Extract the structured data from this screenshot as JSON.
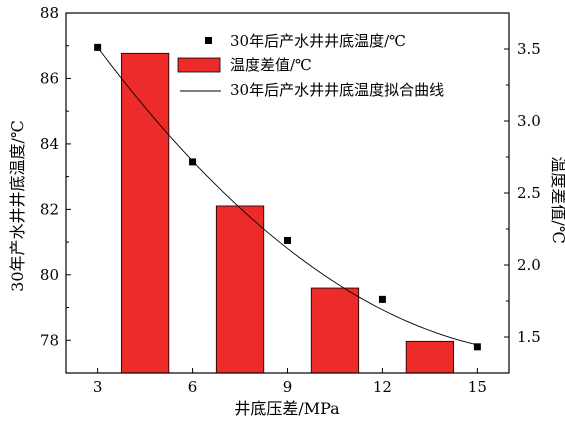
{
  "chart_data": {
    "type": "bar",
    "x": [
      3,
      6,
      9,
      12,
      15
    ],
    "xlim": [
      2,
      16
    ],
    "xticks": [
      "3",
      "6",
      "9",
      "12",
      "15"
    ],
    "xlabel": "井底压差/MPa",
    "ylabel_left": "30年产水井井底温度/℃",
    "ylim_left": [
      77,
      88
    ],
    "yticks_left": [
      "78",
      "80",
      "82",
      "84",
      "86",
      "88"
    ],
    "ylabel_right": "温度差值/℃",
    "ylim_right": [
      1.25,
      3.75
    ],
    "yticks_right": [
      "1.5",
      "2.0",
      "2.5",
      "3.0",
      "3.5"
    ],
    "grid": false,
    "legend_position": "top-right",
    "series": [
      {
        "name": "30年后产水井井底温度/℃",
        "kind": "scatter",
        "axis": "left",
        "marker": "square",
        "color": "#000000",
        "x": [
          3,
          6,
          9,
          12,
          15
        ],
        "values": [
          86.95,
          83.45,
          81.05,
          79.25,
          77.8
        ]
      },
      {
        "name": "温度差值/℃",
        "kind": "bar",
        "axis": "right",
        "color": "#ee2b2b",
        "x": [
          4.5,
          7.5,
          10.5,
          13.5
        ],
        "bar_width": 1.5,
        "values": [
          3.47,
          2.41,
          1.84,
          1.47
        ]
      },
      {
        "name": "30年后产水井井底温度拟合曲线",
        "kind": "line",
        "axis": "left",
        "color": "#000000",
        "fit_quadratic": [
          0.0444,
          -1.5567,
          91.22
        ]
      }
    ]
  }
}
